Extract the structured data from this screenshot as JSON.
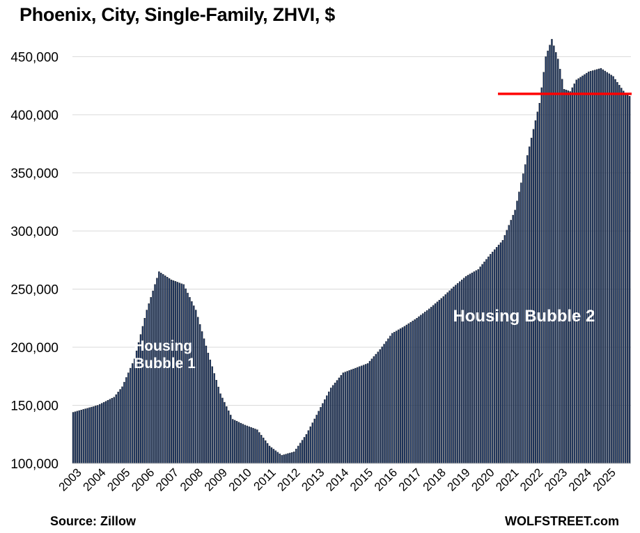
{
  "title": "Phoenix, City, Single-Family, ZHVI, $",
  "source": "Source: Zillow",
  "brand": "WOLFSTREET.com",
  "chart_data": {
    "type": "bar",
    "title": "Phoenix, City, Single-Family, ZHVI, $",
    "xlabel": "",
    "ylabel": "",
    "ylim": [
      100000,
      470000
    ],
    "yticks": [
      100000,
      150000,
      200000,
      250000,
      300000,
      350000,
      400000,
      450000
    ],
    "ytick_labels": [
      "100,000",
      "150,000",
      "200,000",
      "250,000",
      "300,000",
      "350,000",
      "400,000",
      "450,000"
    ],
    "xtick_labels": [
      "2003",
      "2004",
      "2005",
      "2006",
      "2007",
      "2008",
      "2009",
      "2010",
      "2011",
      "2012",
      "2013",
      "2014",
      "2015",
      "2016",
      "2017",
      "2018",
      "2019",
      "2020",
      "2021",
      "2022",
      "2023",
      "2024",
      "2025"
    ],
    "grid": true,
    "bar_color": "#1f3864",
    "reference_line": {
      "value": 418000,
      "color": "#ff0000",
      "start": "2020-05"
    },
    "annotations": [
      {
        "text": [
          "Housing",
          "Bubble 1"
        ],
        "anchor": "2005-07",
        "value": 197000
      },
      {
        "text": [
          "Housing Bubble 2"
        ],
        "anchor": "2018-07",
        "value": 222000
      }
    ],
    "anchors": [
      [
        "2003-01",
        144000
      ],
      [
        "2004-01",
        150000
      ],
      [
        "2004-09",
        157000
      ],
      [
        "2005-01",
        166000
      ],
      [
        "2005-07",
        190000
      ],
      [
        "2006-01",
        232000
      ],
      [
        "2006-07",
        265000
      ],
      [
        "2007-01",
        258000
      ],
      [
        "2007-07",
        254000
      ],
      [
        "2008-01",
        232000
      ],
      [
        "2008-07",
        195000
      ],
      [
        "2009-01",
        160000
      ],
      [
        "2009-07",
        138000
      ],
      [
        "2010-01",
        133000
      ],
      [
        "2010-07",
        129000
      ],
      [
        "2011-01",
        115000
      ],
      [
        "2011-07",
        107000
      ],
      [
        "2012-01",
        110000
      ],
      [
        "2012-07",
        125000
      ],
      [
        "2013-01",
        145000
      ],
      [
        "2013-07",
        165000
      ],
      [
        "2014-01",
        178000
      ],
      [
        "2014-07",
        182000
      ],
      [
        "2015-01",
        186000
      ],
      [
        "2015-07",
        198000
      ],
      [
        "2016-01",
        212000
      ],
      [
        "2016-07",
        218000
      ],
      [
        "2017-01",
        225000
      ],
      [
        "2017-07",
        233000
      ],
      [
        "2018-01",
        242000
      ],
      [
        "2018-07",
        252000
      ],
      [
        "2019-01",
        261000
      ],
      [
        "2019-07",
        267000
      ],
      [
        "2020-01",
        280000
      ],
      [
        "2020-07",
        292000
      ],
      [
        "2021-01",
        318000
      ],
      [
        "2021-07",
        365000
      ],
      [
        "2022-01",
        410000
      ],
      [
        "2022-04",
        450000
      ],
      [
        "2022-07",
        465000
      ],
      [
        "2022-10",
        448000
      ],
      [
        "2023-01",
        422000
      ],
      [
        "2023-04",
        420000
      ],
      [
        "2023-07",
        430000
      ],
      [
        "2024-01",
        437000
      ],
      [
        "2024-07",
        440000
      ],
      [
        "2025-01",
        433000
      ],
      [
        "2025-07",
        418000
      ],
      [
        "2025-09",
        416000
      ]
    ]
  }
}
